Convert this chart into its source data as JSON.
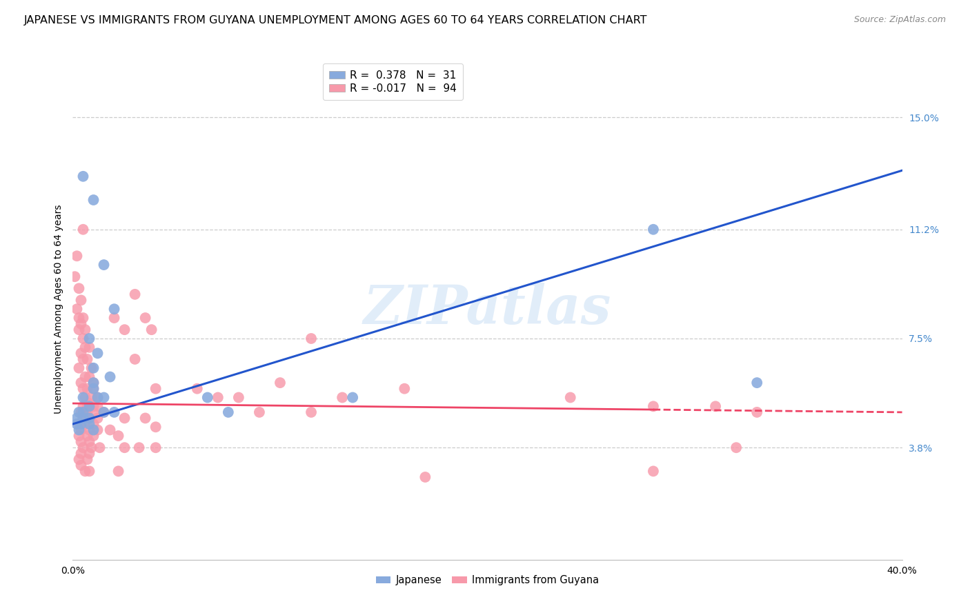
{
  "title": "JAPANESE VS IMMIGRANTS FROM GUYANA UNEMPLOYMENT AMONG AGES 60 TO 64 YEARS CORRELATION CHART",
  "source": "Source: ZipAtlas.com",
  "ylabel": "Unemployment Among Ages 60 to 64 years",
  "ytick_labels": [
    "15.0%",
    "11.2%",
    "7.5%",
    "3.8%"
  ],
  "ytick_values": [
    0.15,
    0.112,
    0.075,
    0.038
  ],
  "xtick_labels": [
    "0.0%",
    "40.0%"
  ],
  "xtick_values": [
    0.0,
    0.4
  ],
  "xmin": 0.0,
  "xmax": 0.4,
  "ymin": 0.0,
  "ymax": 0.17,
  "legend_r1": "R =  0.378   N =  31",
  "legend_r2": "R = -0.017   N =  94",
  "legend_label1": "Japanese",
  "legend_label2": "Immigrants from Guyana",
  "watermark": "ZIPatlas",
  "japanese_color": "#88aadd",
  "guyana_color": "#f799aa",
  "japanese_line_color": "#2255cc",
  "guyana_line_color": "#ee4466",
  "right_tick_color": "#4488cc",
  "background_color": "#ffffff",
  "grid_color": "#cccccc",
  "title_fontsize": 11.5,
  "axis_label_fontsize": 10,
  "tick_fontsize": 10,
  "legend_fontsize": 11,
  "jp_line_x": [
    0.0,
    0.4
  ],
  "jp_line_y": [
    0.046,
    0.132
  ],
  "gy_line_x": [
    0.0,
    0.4
  ],
  "gy_line_y": [
    0.053,
    0.05
  ],
  "japanese_points": [
    [
      0.005,
      0.13
    ],
    [
      0.01,
      0.122
    ],
    [
      0.015,
      0.1
    ],
    [
      0.02,
      0.085
    ],
    [
      0.008,
      0.075
    ],
    [
      0.012,
      0.07
    ],
    [
      0.01,
      0.065
    ],
    [
      0.018,
      0.062
    ],
    [
      0.01,
      0.06
    ],
    [
      0.01,
      0.058
    ],
    [
      0.012,
      0.055
    ],
    [
      0.015,
      0.055
    ],
    [
      0.005,
      0.055
    ],
    [
      0.008,
      0.052
    ],
    [
      0.015,
      0.05
    ],
    [
      0.02,
      0.05
    ],
    [
      0.005,
      0.05
    ],
    [
      0.003,
      0.05
    ],
    [
      0.002,
      0.048
    ],
    [
      0.008,
      0.048
    ],
    [
      0.005,
      0.048
    ],
    [
      0.008,
      0.046
    ],
    [
      0.004,
      0.046
    ],
    [
      0.002,
      0.046
    ],
    [
      0.01,
      0.044
    ],
    [
      0.003,
      0.044
    ],
    [
      0.065,
      0.055
    ],
    [
      0.075,
      0.05
    ],
    [
      0.135,
      0.055
    ],
    [
      0.28,
      0.112
    ],
    [
      0.33,
      0.06
    ]
  ],
  "guyana_points": [
    [
      0.002,
      0.103
    ],
    [
      0.001,
      0.096
    ],
    [
      0.003,
      0.092
    ],
    [
      0.005,
      0.112
    ],
    [
      0.004,
      0.088
    ],
    [
      0.002,
      0.085
    ],
    [
      0.003,
      0.082
    ],
    [
      0.005,
      0.082
    ],
    [
      0.004,
      0.08
    ],
    [
      0.006,
      0.078
    ],
    [
      0.003,
      0.078
    ],
    [
      0.005,
      0.075
    ],
    [
      0.006,
      0.072
    ],
    [
      0.008,
      0.072
    ],
    [
      0.004,
      0.07
    ],
    [
      0.007,
      0.068
    ],
    [
      0.005,
      0.068
    ],
    [
      0.003,
      0.065
    ],
    [
      0.009,
      0.065
    ],
    [
      0.006,
      0.062
    ],
    [
      0.008,
      0.062
    ],
    [
      0.004,
      0.06
    ],
    [
      0.01,
      0.06
    ],
    [
      0.007,
      0.058
    ],
    [
      0.005,
      0.058
    ],
    [
      0.01,
      0.058
    ],
    [
      0.006,
      0.055
    ],
    [
      0.009,
      0.055
    ],
    [
      0.012,
      0.055
    ],
    [
      0.008,
      0.053
    ],
    [
      0.005,
      0.052
    ],
    [
      0.007,
      0.052
    ],
    [
      0.01,
      0.052
    ],
    [
      0.012,
      0.052
    ],
    [
      0.004,
      0.05
    ],
    [
      0.007,
      0.05
    ],
    [
      0.01,
      0.05
    ],
    [
      0.015,
      0.05
    ],
    [
      0.005,
      0.048
    ],
    [
      0.008,
      0.048
    ],
    [
      0.012,
      0.048
    ],
    [
      0.003,
      0.046
    ],
    [
      0.006,
      0.046
    ],
    [
      0.01,
      0.046
    ],
    [
      0.004,
      0.044
    ],
    [
      0.008,
      0.044
    ],
    [
      0.012,
      0.044
    ],
    [
      0.003,
      0.042
    ],
    [
      0.007,
      0.042
    ],
    [
      0.01,
      0.042
    ],
    [
      0.004,
      0.04
    ],
    [
      0.008,
      0.04
    ],
    [
      0.005,
      0.038
    ],
    [
      0.009,
      0.038
    ],
    [
      0.013,
      0.038
    ],
    [
      0.004,
      0.036
    ],
    [
      0.008,
      0.036
    ],
    [
      0.003,
      0.034
    ],
    [
      0.007,
      0.034
    ],
    [
      0.004,
      0.032
    ],
    [
      0.008,
      0.03
    ],
    [
      0.006,
      0.03
    ],
    [
      0.02,
      0.082
    ],
    [
      0.025,
      0.078
    ],
    [
      0.03,
      0.09
    ],
    [
      0.03,
      0.068
    ],
    [
      0.035,
      0.082
    ],
    [
      0.038,
      0.078
    ],
    [
      0.04,
      0.058
    ],
    [
      0.025,
      0.048
    ],
    [
      0.035,
      0.048
    ],
    [
      0.04,
      0.045
    ],
    [
      0.018,
      0.044
    ],
    [
      0.022,
      0.042
    ],
    [
      0.025,
      0.038
    ],
    [
      0.032,
      0.038
    ],
    [
      0.04,
      0.038
    ],
    [
      0.022,
      0.03
    ],
    [
      0.06,
      0.058
    ],
    [
      0.07,
      0.055
    ],
    [
      0.08,
      0.055
    ],
    [
      0.09,
      0.05
    ],
    [
      0.115,
      0.075
    ],
    [
      0.13,
      0.055
    ],
    [
      0.16,
      0.058
    ],
    [
      0.24,
      0.055
    ],
    [
      0.28,
      0.052
    ],
    [
      0.28,
      0.03
    ],
    [
      0.31,
      0.052
    ],
    [
      0.33,
      0.05
    ],
    [
      0.17,
      0.028
    ],
    [
      0.32,
      0.038
    ],
    [
      0.1,
      0.06
    ],
    [
      0.115,
      0.05
    ]
  ]
}
